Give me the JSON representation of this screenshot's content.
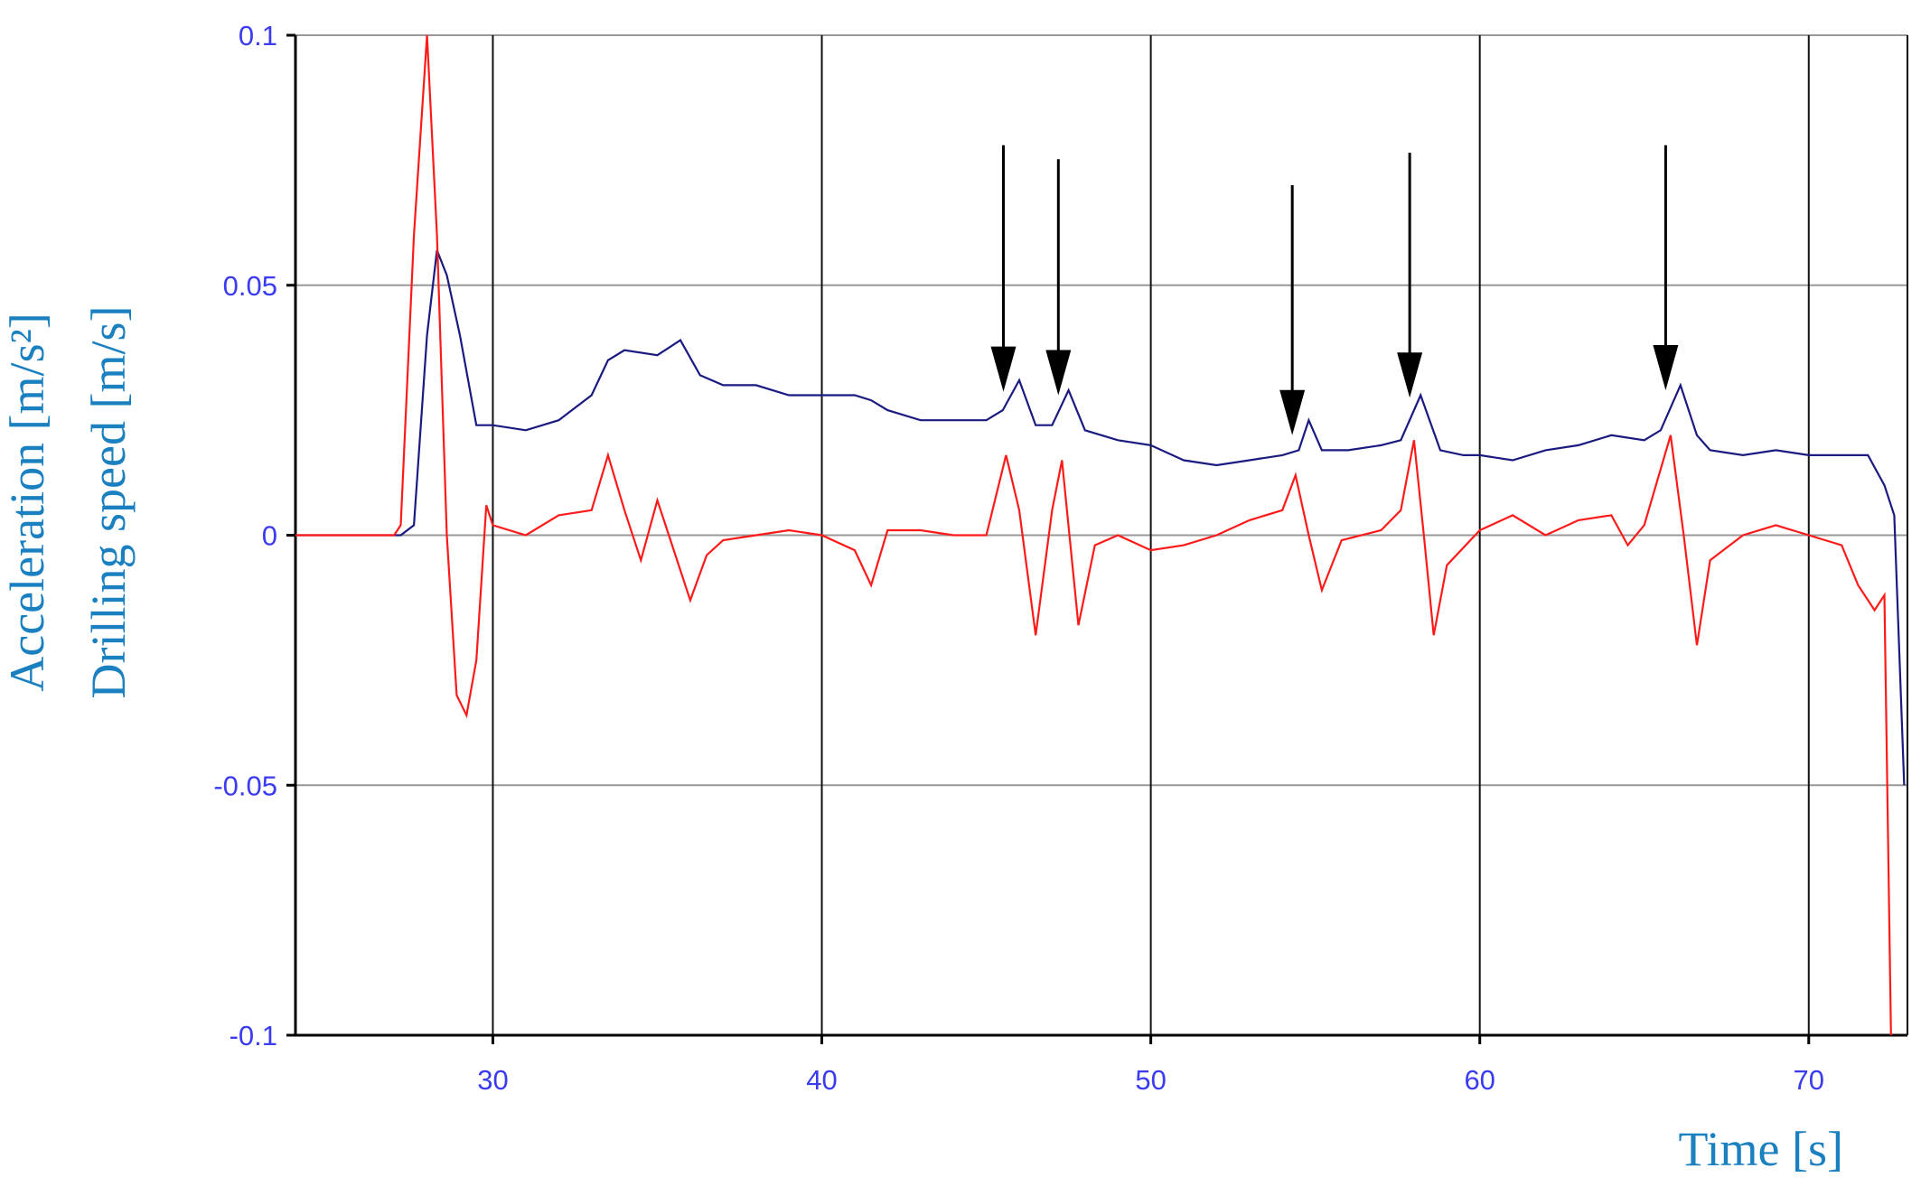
{
  "chart_data": {
    "type": "line",
    "x_label": "Time [s]",
    "y_labels": [
      "Acceleration [m/s²]",
      "Drilling speed [m/s]"
    ],
    "xlim": [
      24,
      73
    ],
    "xticks": [
      30,
      40,
      50,
      60,
      70
    ],
    "ylim": [
      -0.1,
      0.1
    ],
    "yticks": [
      0.1,
      0.05,
      0,
      -0.05,
      -0.1
    ],
    "grid": true,
    "series": [
      {
        "color": "#1a1a80",
        "x": [
          24,
          25,
          26,
          27,
          27.2,
          27.6,
          28.0,
          28.3,
          28.6,
          29.0,
          29.5,
          30,
          31,
          32,
          33,
          33.5,
          34,
          35,
          35.7,
          36.3,
          37,
          38,
          39,
          40,
          41,
          41.5,
          42,
          43,
          44,
          45,
          45.5,
          46,
          46.5,
          47,
          47.5,
          48,
          49,
          50,
          51,
          52,
          53,
          54,
          54.5,
          54.8,
          55.2,
          56,
          57,
          57.6,
          58.2,
          58.8,
          59.5,
          60,
          61,
          62,
          63,
          64,
          65,
          65.5,
          66.1,
          66.6,
          67,
          68,
          69,
          70,
          71,
          71.8,
          72.3,
          72.6,
          72.9
        ],
        "values": [
          0,
          0,
          0,
          0,
          0,
          0.002,
          0.04,
          0.057,
          0.052,
          0.04,
          0.022,
          0.022,
          0.021,
          0.023,
          0.028,
          0.035,
          0.037,
          0.036,
          0.039,
          0.032,
          0.03,
          0.03,
          0.028,
          0.028,
          0.028,
          0.027,
          0.025,
          0.023,
          0.023,
          0.023,
          0.025,
          0.031,
          0.022,
          0.022,
          0.029,
          0.021,
          0.019,
          0.018,
          0.015,
          0.014,
          0.015,
          0.016,
          0.017,
          0.023,
          0.017,
          0.017,
          0.018,
          0.019,
          0.028,
          0.017,
          0.016,
          0.016,
          0.015,
          0.017,
          0.018,
          0.02,
          0.019,
          0.021,
          0.03,
          0.02,
          0.017,
          0.016,
          0.017,
          0.016,
          0.016,
          0.016,
          0.01,
          0.004,
          -0.05
        ]
      },
      {
        "color": "#ff1a1a",
        "x": [
          24,
          25,
          26,
          27,
          27.2,
          27.6,
          28.0,
          28.3,
          28.6,
          28.9,
          29.2,
          29.5,
          29.8,
          30,
          31,
          32,
          33,
          33.5,
          34,
          34.5,
          35,
          35.5,
          36,
          36.5,
          37,
          38,
          39,
          40,
          41,
          41.5,
          42,
          43,
          44,
          45,
          45.6,
          46,
          46.5,
          47,
          47.3,
          47.8,
          48.3,
          49,
          50,
          51,
          52,
          53,
          54,
          54.4,
          54.8,
          55.2,
          55.8,
          57,
          57.6,
          58,
          58.3,
          58.6,
          59,
          60,
          61,
          62,
          63,
          64,
          64.5,
          65,
          65.8,
          66.2,
          66.6,
          67,
          68,
          69,
          70,
          71,
          71.5,
          72,
          72.3,
          72.5
        ],
        "values": [
          0,
          0,
          0,
          0,
          0.002,
          0.06,
          0.1,
          0.06,
          0.0,
          -0.032,
          -0.036,
          -0.025,
          0.006,
          0.002,
          0.0,
          0.004,
          0.005,
          0.016,
          0.005,
          -0.005,
          0.007,
          -0.003,
          -0.013,
          -0.004,
          -0.001,
          0.0,
          0.001,
          0.0,
          -0.003,
          -0.01,
          0.001,
          0.001,
          0.0,
          0.0,
          0.016,
          0.005,
          -0.02,
          0.005,
          0.015,
          -0.018,
          -0.002,
          0.0,
          -0.003,
          -0.002,
          0.0,
          0.003,
          0.005,
          0.012,
          0.0,
          -0.011,
          -0.001,
          0.001,
          0.005,
          0.019,
          0.0,
          -0.02,
          -0.006,
          0.001,
          0.004,
          0.0,
          0.003,
          0.004,
          -0.002,
          0.002,
          0.02,
          0.0,
          -0.022,
          -0.005,
          0.0,
          0.002,
          0.0,
          -0.002,
          -0.01,
          -0.015,
          -0.012,
          -0.1
        ]
      }
    ],
    "arrows": [
      {
        "x": 45.52,
        "y_tail": 0.078,
        "y_tip": 0.0287
      },
      {
        "x": 47.19,
        "y_tail": 0.0752,
        "y_tip": 0.028
      },
      {
        "x": 54.3,
        "y_tail": 0.07,
        "y_tip": 0.02
      },
      {
        "x": 57.87,
        "y_tail": 0.0765,
        "y_tip": 0.0275
      },
      {
        "x": 65.65,
        "y_tail": 0.078,
        "y_tip": 0.029
      }
    ]
  }
}
